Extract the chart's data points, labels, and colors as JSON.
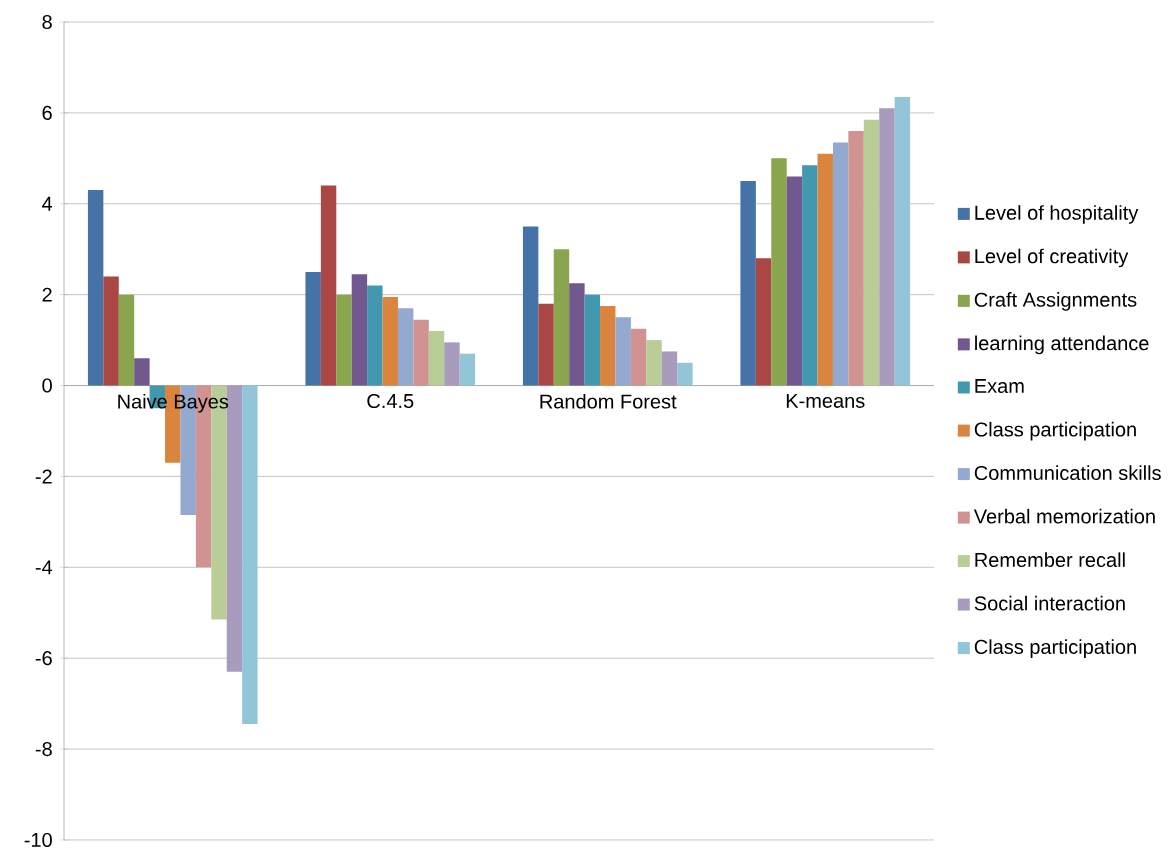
{
  "chart_data": {
    "type": "bar",
    "categories": [
      "Naive Bayes",
      "C.4.5",
      "Random Forest",
      "K-means"
    ],
    "series": [
      {
        "name": "Level of hospitality",
        "color": "#4572a7",
        "values": [
          4.3,
          2.5,
          3.5,
          4.5
        ]
      },
      {
        "name": "Level of creativity",
        "color": "#aa4643",
        "values": [
          2.4,
          4.4,
          1.8,
          2.8
        ]
      },
      {
        "name": "Craft Assignments",
        "color": "#89a54e",
        "values": [
          2.0,
          2.0,
          3.0,
          5.0
        ]
      },
      {
        "name": "learning attendance",
        "color": "#71588f",
        "values": [
          0.6,
          2.45,
          2.25,
          4.6
        ]
      },
      {
        "name": "Exam",
        "color": "#4198af",
        "values": [
          -0.5,
          2.2,
          2.0,
          4.85
        ]
      },
      {
        "name": "Class participation",
        "color": "#db843d",
        "values": [
          -1.7,
          1.95,
          1.75,
          5.1
        ]
      },
      {
        "name": "Communication skills",
        "color": "#93a9cf",
        "values": [
          -2.85,
          1.7,
          1.5,
          5.35
        ]
      },
      {
        "name": "Verbal memorization",
        "color": "#d19392",
        "values": [
          -4.0,
          1.45,
          1.25,
          5.6
        ]
      },
      {
        "name": "Remember recall",
        "color": "#b9cd96",
        "values": [
          -5.15,
          1.2,
          1.0,
          5.85
        ]
      },
      {
        "name": "Social interaction",
        "color": "#a99bbd",
        "values": [
          -6.3,
          0.95,
          0.75,
          6.1
        ]
      },
      {
        "name": "Class participation",
        "color": "#92c5d8",
        "values": [
          -7.45,
          0.7,
          0.5,
          6.35
        ]
      }
    ],
    "ylim": [
      -10,
      8
    ],
    "yticks": [
      -10,
      -8,
      -6,
      -4,
      -2,
      0,
      2,
      4,
      6,
      8
    ],
    "grid": "y",
    "legend": "right"
  }
}
